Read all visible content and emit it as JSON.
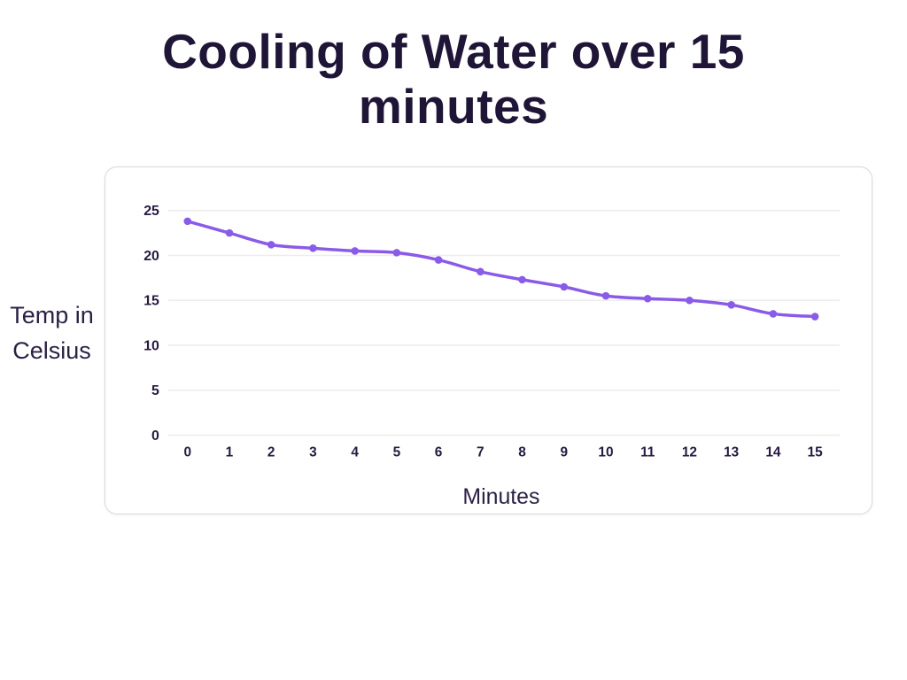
{
  "title": "Cooling of Water over 15\nminutes",
  "chart_data": {
    "type": "line",
    "title": "Cooling of Water over 15 minutes",
    "xlabel": "Minutes",
    "ylabel": "Temp in Celsius",
    "x": [
      0,
      1,
      2,
      3,
      4,
      5,
      6,
      7,
      8,
      9,
      10,
      11,
      12,
      13,
      14,
      15
    ],
    "values": [
      23.8,
      22.5,
      21.2,
      20.8,
      20.5,
      20.3,
      19.5,
      18.2,
      17.3,
      16.5,
      15.5,
      15.2,
      15.0,
      14.5,
      13.5,
      13.2
    ],
    "xlim": [
      0,
      15
    ],
    "ylim": [
      0,
      25
    ],
    "yticks": [
      0,
      5,
      10,
      15,
      20,
      25
    ],
    "grid": "horizontal-only",
    "legend": "none",
    "marker": "circle",
    "line_style": "smooth",
    "colors": {
      "line": "#8A5BE8",
      "marker": "#8A5BE8",
      "gridline": "#ECECEC",
      "tick_label": "#251A40",
      "axis_title": "#2B2145",
      "chart_title": "#1F1537",
      "card_border": "#D9D9D9",
      "background": "#FFFFFF"
    }
  }
}
